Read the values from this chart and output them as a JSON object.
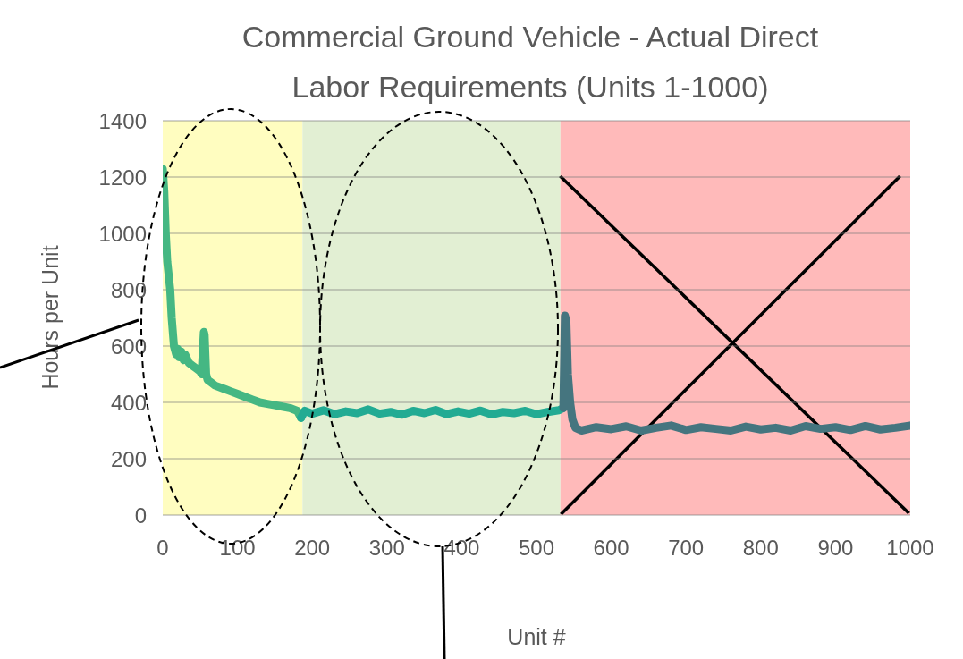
{
  "chart_data": {
    "type": "line",
    "title": "Commercial Ground Vehicle - Actual Direct Labor Requirements (Units 1-1000)",
    "xlabel": "Unit #",
    "ylabel": "Hours per Unit",
    "xlim": [
      0,
      1000
    ],
    "xticks": [
      0,
      100,
      200,
      300,
      400,
      500,
      600,
      700,
      800,
      900,
      1000
    ],
    "ylim": [
      0,
      1400
    ],
    "yticks": [
      0,
      200,
      400,
      600,
      800,
      1000,
      1200,
      1400
    ],
    "grid": "y",
    "legend": false,
    "marker": "none",
    "line_style": "solid",
    "bands": [
      {
        "axis": "x",
        "from": 0,
        "to": 187,
        "color": "#fffdc0"
      },
      {
        "axis": "x",
        "from": 187,
        "to": 532,
        "color": "#e2efd3"
      },
      {
        "axis": "x",
        "from": 532,
        "to": 1000,
        "color": "#ffbaba"
      }
    ],
    "series": [
      {
        "color": "#45b783",
        "x": [
          0,
          2,
          4,
          6,
          8,
          10,
          12,
          15,
          18,
          20,
          22,
          25,
          28,
          30,
          35,
          40,
          45,
          50,
          52,
          55,
          56,
          58,
          60,
          65,
          70,
          80,
          90,
          100,
          110,
          120,
          130,
          140,
          150,
          160,
          170,
          180,
          185
        ],
        "values": [
          1230,
          1150,
          1000,
          900,
          850,
          800,
          700,
          600,
          570,
          590,
          560,
          580,
          550,
          570,
          540,
          530,
          520,
          510,
          500,
          650,
          640,
          500,
          480,
          470,
          460,
          450,
          440,
          430,
          420,
          410,
          400,
          395,
          390,
          385,
          380,
          370,
          345
        ]
      },
      {
        "color": "#22ab93",
        "x": [
          185,
          190,
          200,
          215,
          230,
          245,
          260,
          275,
          290,
          305,
          320,
          335,
          350,
          365,
          380,
          395,
          410,
          425,
          440,
          455,
          470,
          485,
          500,
          515,
          530,
          536
        ],
        "values": [
          345,
          370,
          360,
          372,
          358,
          368,
          362,
          375,
          360,
          366,
          356,
          370,
          362,
          373,
          358,
          368,
          360,
          371,
          357,
          366,
          362,
          370,
          358,
          366,
          372,
          380
        ]
      },
      {
        "color": "#45757f",
        "x": [
          536,
          538,
          540,
          542,
          545,
          548,
          552,
          560,
          580,
          600,
          620,
          640,
          660,
          680,
          700,
          720,
          740,
          760,
          780,
          800,
          820,
          840,
          860,
          880,
          900,
          920,
          940,
          960,
          980,
          1000
        ],
        "values": [
          380,
          708,
          690,
          500,
          400,
          340,
          310,
          300,
          312,
          305,
          315,
          300,
          310,
          318,
          302,
          312,
          306,
          300,
          314,
          304,
          310,
          300,
          316,
          306,
          312,
          302,
          316,
          304,
          310,
          318
        ]
      }
    ]
  }
}
